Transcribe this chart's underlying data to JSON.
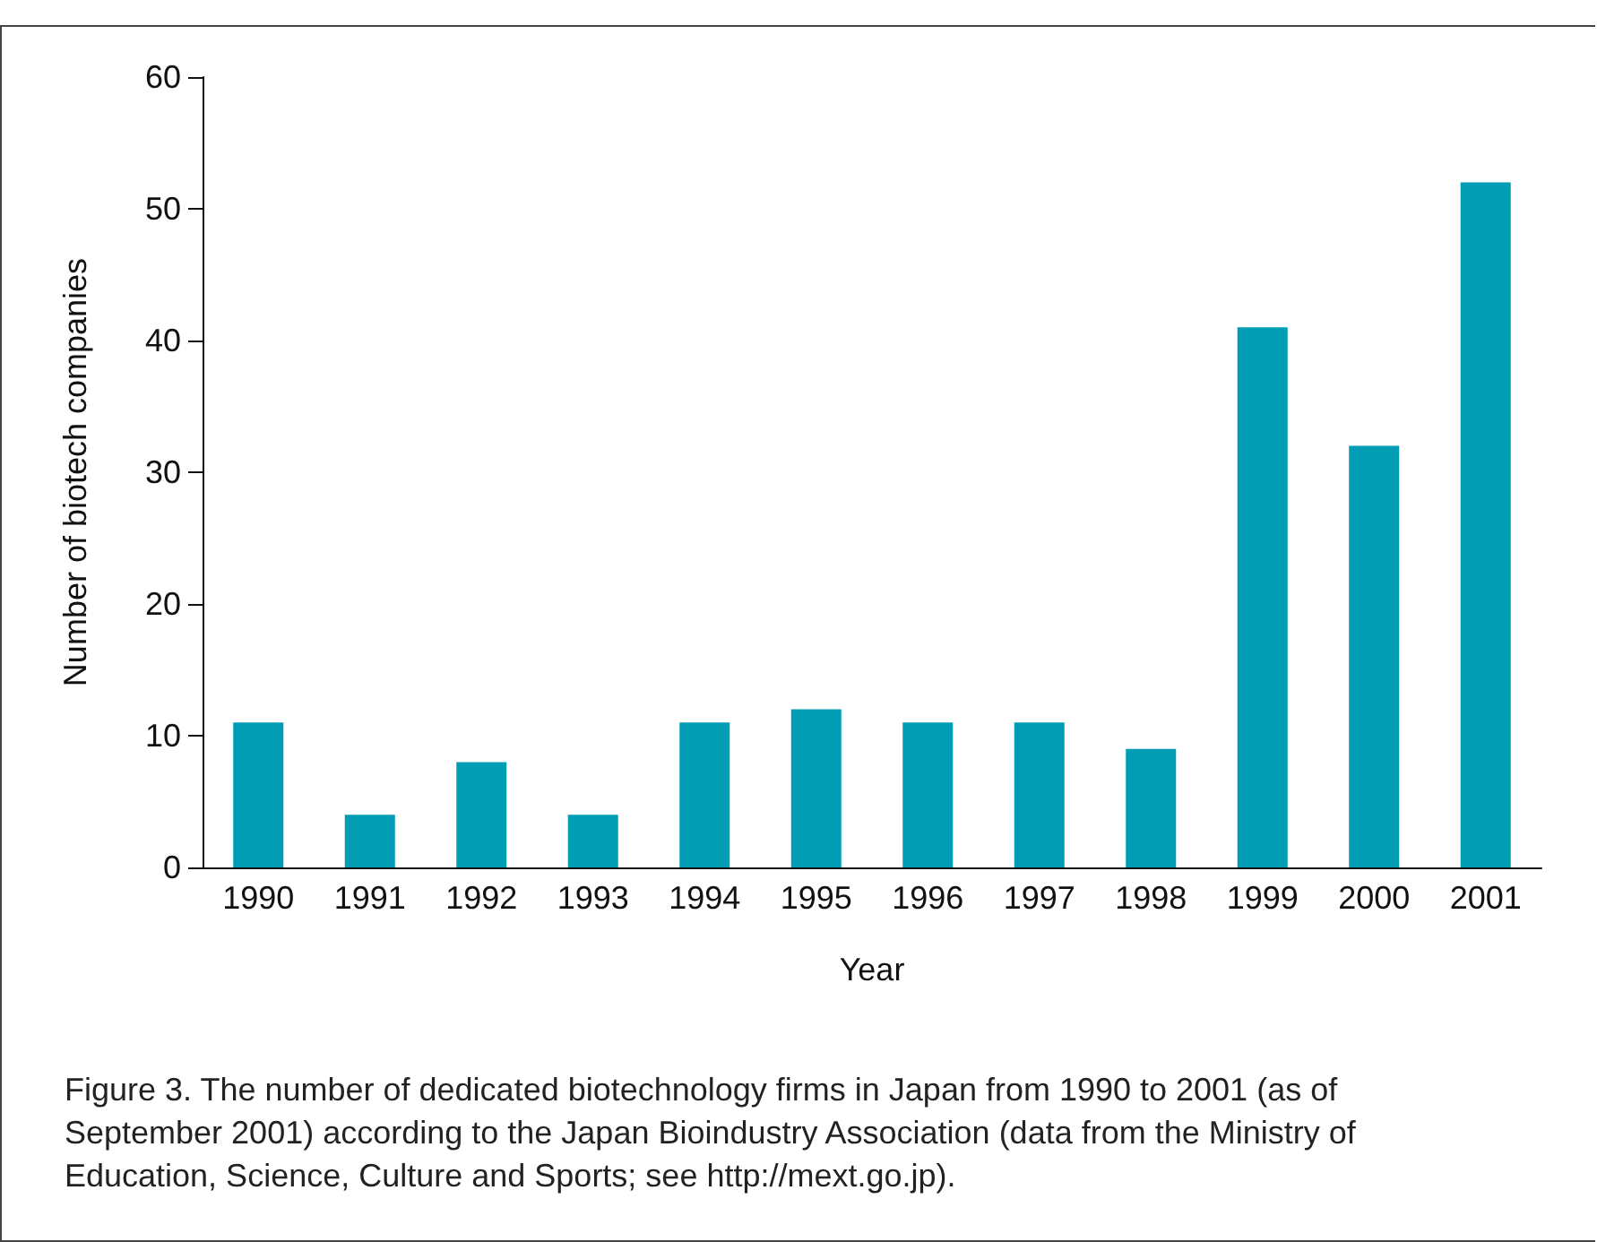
{
  "chart_data": {
    "type": "bar",
    "xlabel": "Year",
    "ylabel": "Number of biotech companies",
    "categories": [
      "1990",
      "1991",
      "1992",
      "1993",
      "1994",
      "1995",
      "1996",
      "1997",
      "1998",
      "1999",
      "2000",
      "2001"
    ],
    "values": [
      11,
      4,
      8,
      4,
      11,
      12,
      11,
      11,
      9,
      41,
      32,
      52
    ],
    "color": "#009db5",
    "ylim": [
      0,
      60
    ],
    "yticks": [
      0,
      10,
      20,
      30,
      40,
      50,
      60
    ],
    "grid": false,
    "annotations": [
      "Figure 3. The number of dedicated biotechnology firms in Japan from 1990 to 2001 (as of September 2001) according to the Japan Bioindustry Association (data from the Ministry of Education, Science, Culture and Sports; see http://mext.go.jp)."
    ]
  }
}
